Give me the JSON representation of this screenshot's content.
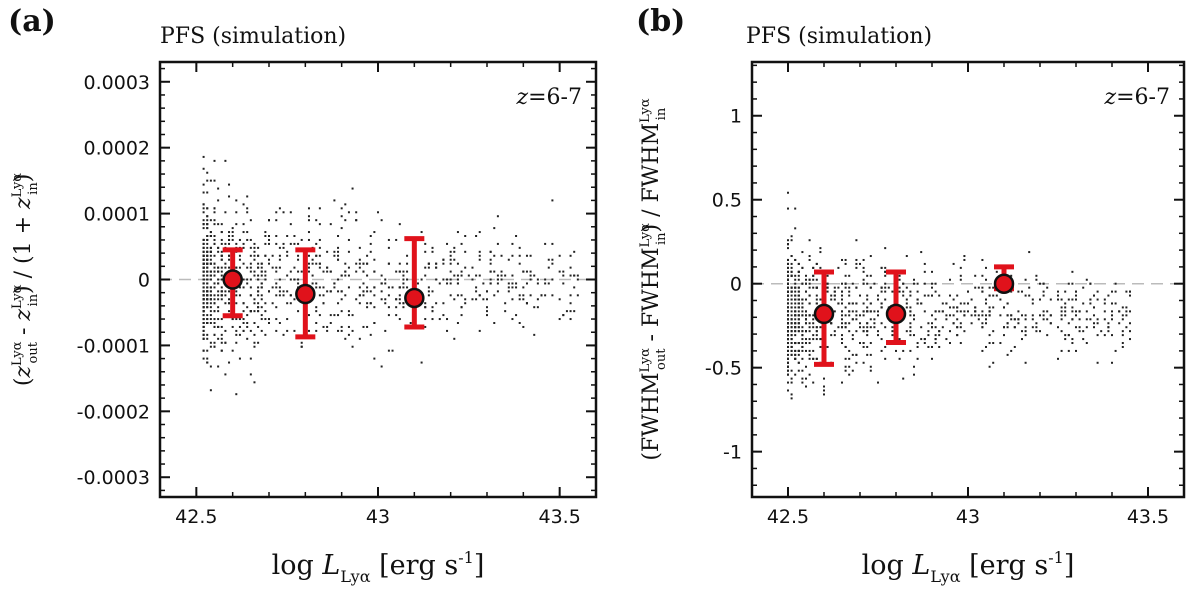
{
  "chart_data": [
    {
      "type": "scatter",
      "panel_label": "(a)",
      "title": "PFS (simulation)",
      "annotation": "z=6-7",
      "annotation_parts": {
        "var": "z",
        "rest": "=6-7"
      },
      "xlabel_parts": {
        "pre": "log ",
        "var": "L",
        "sub": "Lyα",
        "post": " [erg s",
        "sup": "-1",
        "end": "]"
      },
      "ylabel": "(z_out^Lyα - z_in^Lyα) / (1 + z_in^Lyα)",
      "ylabel_parts": {
        "a": "(",
        "b": "z",
        "c": "Lyα",
        "d": "out",
        "e": " - ",
        "f": "z",
        "g": "Lyα",
        "h": "in",
        "i": ") / (1 + ",
        "j": "z",
        "k": "Lyα",
        "l": "in",
        "m": ")"
      },
      "xlim": [
        42.4,
        43.6
      ],
      "ylim": [
        -0.00033,
        0.00033
      ],
      "xticks": [
        42.5,
        43,
        43.5
      ],
      "xtick_labels": [
        "42.5",
        "43",
        "43.5"
      ],
      "yticks": [
        -0.0003,
        -0.0002,
        -0.0001,
        0,
        0.0001,
        0.0002,
        0.0003
      ],
      "ytick_labels": [
        "-0.0003",
        "-0.0002",
        "-0.0001",
        "0",
        "0.0001",
        "0.0002",
        "0.0003"
      ],
      "reference_line": 0,
      "scatter_cloud": {
        "description_free": true,
        "x_min": 42.52,
        "x_max": 43.55,
        "y_sigma_low_L": 6e-05,
        "y_sigma_high_L": 3e-05,
        "count": 1100
      },
      "binned_points": [
        {
          "x": 42.6,
          "y": 0.0,
          "yerr_low": -5.5e-05,
          "yerr_high": 4.5e-05
        },
        {
          "x": 42.8,
          "y": -2.2e-05,
          "yerr_low": -8.7e-05,
          "yerr_high": 4.5e-05
        },
        {
          "x": 43.1,
          "y": -2.8e-05,
          "yerr_low": -7.2e-05,
          "yerr_high": 6.2e-05
        }
      ],
      "colors": {
        "points": "#e0121b",
        "scatter": "#222222",
        "refline": "#bbbbbb"
      }
    },
    {
      "type": "scatter",
      "panel_label": "(b)",
      "title": "PFS (simulation)",
      "annotation": "z=6-7",
      "annotation_parts": {
        "var": "z",
        "rest": "=6-7"
      },
      "xlabel_parts": {
        "pre": "log ",
        "var": "L",
        "sub": "Lyα",
        "post": " [erg s",
        "sup": "-1",
        "end": "]"
      },
      "ylabel": "(FWHM_out^Lyα - FWHM_in^Lyα) / FWHM_in^Lyα",
      "ylabel_parts": {
        "a": "(FWHM",
        "c": "Lyα",
        "d": "out",
        "e": " - FWHM",
        "g": "Lyα",
        "h": "in",
        "i": ") / FWHM",
        "k": "Lyα",
        "l": "in"
      },
      "xlim": [
        42.4,
        43.6
      ],
      "ylim": [
        -1.27,
        1.32
      ],
      "xticks": [
        42.5,
        43,
        43.5
      ],
      "xtick_labels": [
        "42.5",
        "43",
        "43.5"
      ],
      "yticks": [
        -1,
        -0.5,
        0,
        0.5,
        1
      ],
      "ytick_labels": [
        "-1",
        "-0.5",
        "0",
        "0.5",
        "1"
      ],
      "reference_line": 0,
      "scatter_cloud": {
        "x_min": 42.5,
        "x_max": 43.45,
        "y_center": -0.17,
        "y_sigma_low_L": 0.2,
        "y_sigma_high_L": 0.1,
        "count": 1100
      },
      "binned_points": [
        {
          "x": 42.6,
          "y": -0.18,
          "yerr_low": -0.48,
          "yerr_high": 0.07
        },
        {
          "x": 42.8,
          "y": -0.18,
          "yerr_low": -0.35,
          "yerr_high": 0.07
        },
        {
          "x": 43.1,
          "y": 0.0,
          "yerr_low": -0.03,
          "yerr_high": 0.1
        }
      ],
      "colors": {
        "points": "#e0121b",
        "scatter": "#222222",
        "refline": "#bbbbbb"
      }
    }
  ]
}
